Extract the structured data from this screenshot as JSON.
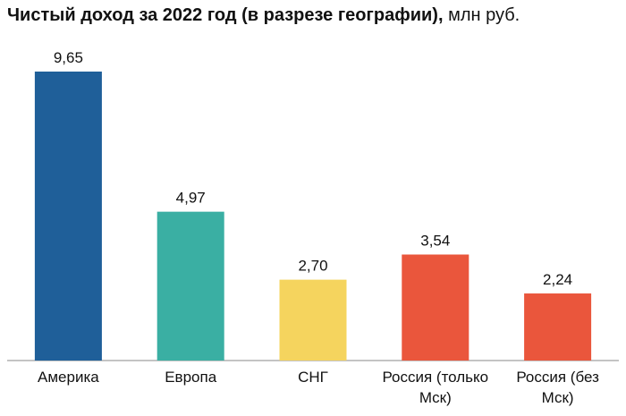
{
  "chart_data": {
    "type": "bar",
    "title": "Чистый доход за 2022 год (в разрезе географии),",
    "subtitle": "млн руб.",
    "categories": [
      "Америка",
      "Европа",
      "СНГ",
      "Россия (только Мск)",
      "Россия (без Мск)"
    ],
    "values": [
      9.65,
      4.97,
      2.7,
      3.54,
      2.24
    ],
    "value_labels": [
      "9,65",
      "4,97",
      "2,70",
      "3,54",
      "2,24"
    ],
    "colors": [
      "#1f5f99",
      "#3aafa3",
      "#f5d45e",
      "#ea563c",
      "#ea563c"
    ]
  }
}
